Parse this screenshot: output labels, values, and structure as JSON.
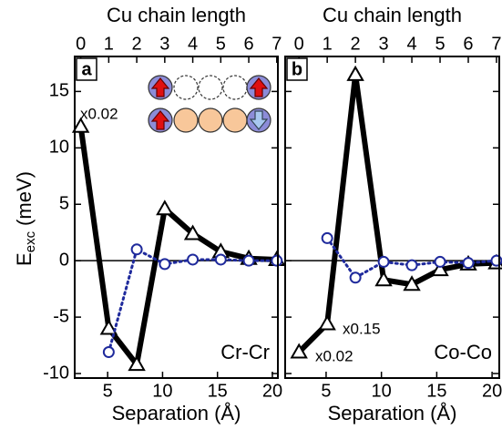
{
  "chart_data": [
    {
      "type": "line",
      "panel_label": "a",
      "x_label": "Separation (Å)",
      "x2_label": "Cu chain length",
      "y_label": "E",
      "y_label_sub": "exc",
      "y_label_unit": "(meV)",
      "annotations": [
        "x0.02",
        "Cr-Cr"
      ],
      "x": [
        2.55,
        5.1,
        7.65,
        10.2,
        12.75,
        15.3,
        17.85,
        20.4
      ],
      "series": [
        {
          "color": "#000000",
          "marker": "triangle",
          "linestyle": "solid",
          "values": [
            11.9,
            -6.0,
            -9.2,
            4.6,
            2.4,
            0.8,
            0.2,
            0.1
          ]
        },
        {
          "color": "#1f2a9c",
          "marker": "circle",
          "linestyle": "dotted",
          "values": [
            null,
            -8.1,
            1.0,
            -0.3,
            0.1,
            0.1,
            0.0,
            0.0
          ]
        }
      ],
      "xlim": [
        2.0,
        20.5
      ],
      "ylim": [
        -10.4,
        18.1
      ],
      "xticks": [
        5,
        10,
        15,
        20
      ],
      "yticks": [
        -10,
        -5,
        0,
        5,
        10,
        15
      ],
      "ytick_labels": true,
      "x2ticks": [
        {
          "value": 2.55,
          "label": "0"
        },
        {
          "value": 5.1,
          "label": "1"
        },
        {
          "value": 7.65,
          "label": "2"
        },
        {
          "value": 10.2,
          "label": "3"
        },
        {
          "value": 12.75,
          "label": "4"
        },
        {
          "value": 15.3,
          "label": "5"
        },
        {
          "value": 17.85,
          "label": "6"
        },
        {
          "value": 20.4,
          "label": "7"
        }
      ],
      "reference_line": 0
    },
    {
      "type": "line",
      "panel_label": "b",
      "x_label": "Separation (Å)",
      "x2_label": "Cu chain length",
      "annotations": [
        "x0.15",
        "x0.02",
        "Co-Co"
      ],
      "x": [
        2.55,
        5.1,
        7.65,
        10.2,
        12.75,
        15.3,
        17.85,
        20.4
      ],
      "series": [
        {
          "color": "#000000",
          "marker": "triangle",
          "linestyle": "solid",
          "values": [
            -8.1,
            -5.6,
            16.5,
            -1.7,
            -2.1,
            -0.8,
            -0.3,
            -0.2
          ]
        },
        {
          "color": "#1f2a9c",
          "marker": "circle",
          "linestyle": "dotted",
          "values": [
            null,
            2.0,
            -1.5,
            -0.1,
            -0.4,
            -0.1,
            -0.2,
            0.0
          ]
        }
      ],
      "xlim": [
        1.3,
        20.65
      ],
      "ylim": [
        -10.4,
        18.1
      ],
      "xticks": [
        5,
        10,
        15,
        20
      ],
      "yticks": [
        -10,
        -5,
        0,
        5,
        10,
        15
      ],
      "ytick_labels": false,
      "x2ticks": [
        {
          "value": 2.55,
          "label": "0"
        },
        {
          "value": 5.1,
          "label": "1"
        },
        {
          "value": 7.65,
          "label": "2"
        },
        {
          "value": 10.2,
          "label": "3"
        },
        {
          "value": 12.75,
          "label": "4"
        },
        {
          "value": 15.3,
          "label": "5"
        },
        {
          "value": 17.85,
          "label": "6"
        },
        {
          "value": 20.4,
          "label": "7"
        }
      ],
      "reference_line": 0
    }
  ]
}
